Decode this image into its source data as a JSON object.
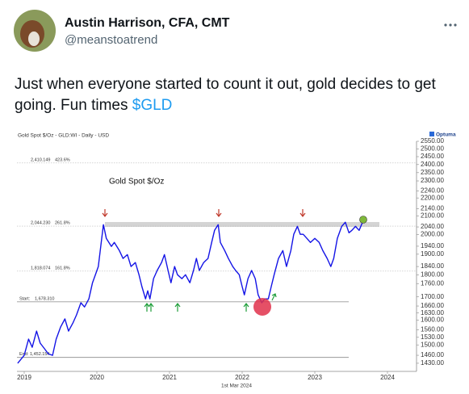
{
  "author": {
    "name": "Austin Harrison, CFA, CMT",
    "handle": "@meanstoatrend"
  },
  "tweet": {
    "text": "Just when everyone started to count it out, gold decides to get going. Fun times ",
    "cashtag": "$GLD"
  },
  "chart_data": {
    "type": "line",
    "header": "Gold Spot $/Oz - GLD:WI - Daily - USD",
    "brand": "Optuma",
    "title": "Gold Spot $/Oz",
    "date_label": "1st Mar 2024",
    "log_scale": true,
    "color": "#1414e6",
    "x": [
      2018.91,
      2019.0,
      2019.06,
      2019.11,
      2019.17,
      2019.22,
      2019.28,
      2019.33,
      2019.39,
      2019.44,
      2019.5,
      2019.56,
      2019.61,
      2019.67,
      2019.72,
      2019.78,
      2019.83,
      2019.89,
      2019.94,
      2019.98,
      2020.02,
      2020.06,
      2020.09,
      2020.13,
      2020.2,
      2020.24,
      2020.31,
      2020.36,
      2020.42,
      2020.47,
      2020.53,
      2020.58,
      2020.62,
      2020.67,
      2020.7,
      2020.73,
      2020.78,
      2020.83,
      2020.89,
      2020.93,
      2020.98,
      2021.02,
      2021.07,
      2021.11,
      2021.17,
      2021.22,
      2021.28,
      2021.33,
      2021.37,
      2021.41,
      2021.47,
      2021.53,
      2021.58,
      2021.62,
      2021.67,
      2021.7,
      2021.76,
      2021.81,
      2021.87,
      2021.91,
      2021.96,
      2022.0,
      2022.03,
      2022.08,
      2022.13,
      2022.18,
      2022.22,
      2022.27,
      2022.31,
      2022.36,
      2022.4,
      2022.44,
      2022.5,
      2022.56,
      2022.61,
      2022.67,
      2022.71,
      2022.76,
      2022.8,
      2022.84,
      2022.89,
      2022.94,
      2023.0,
      2023.06,
      2023.11,
      2023.17,
      2023.22,
      2023.26,
      2023.31,
      2023.37,
      2023.42,
      2023.47,
      2023.51,
      2023.56,
      2023.61,
      2023.67
    ],
    "values": [
      1430,
      1460,
      1523,
      1491,
      1555,
      1507,
      1485,
      1466,
      1460,
      1523,
      1571,
      1605,
      1555,
      1588,
      1622,
      1674,
      1656,
      1691,
      1764,
      1801,
      1840,
      1959,
      2052,
      1980,
      1939,
      1959,
      1918,
      1879,
      1898,
      1840,
      1859,
      1801,
      1746,
      1691,
      1727,
      1691,
      1783,
      1821,
      1859,
      1898,
      1821,
      1764,
      1840,
      1801,
      1783,
      1801,
      1764,
      1821,
      1879,
      1821,
      1859,
      1879,
      1959,
      2022,
      2052,
      1959,
      1918,
      1879,
      1840,
      1821,
      1801,
      1746,
      1709,
      1783,
      1821,
      1783,
      1709,
      1674,
      1691,
      1691,
      1746,
      1801,
      1879,
      1918,
      1840,
      1918,
      2001,
      2043,
      2001,
      2001,
      1980,
      1959,
      1980,
      1959,
      1918,
      1879,
      1840,
      1879,
      1980,
      2043,
      2065,
      2009,
      2022,
      2043,
      2022,
      2078
    ],
    "xlim": [
      2018.9,
      2024.4
    ],
    "xticks": [
      2019,
      2020,
      2021,
      2022,
      2023,
      2024
    ],
    "ylim": [
      1400,
      2550
    ],
    "yticks": [
      {
        "value": 2550,
        "label": "2550.00"
      },
      {
        "value": 2500,
        "label": "2500.00"
      },
      {
        "value": 2450,
        "label": "2450.00"
      },
      {
        "value": 2400,
        "label": "2400.00"
      },
      {
        "value": 2350,
        "label": "2350.00"
      },
      {
        "value": 2300,
        "label": "2300.00"
      },
      {
        "value": 2240,
        "label": "2240.00"
      },
      {
        "value": 2200,
        "label": "2200.00"
      },
      {
        "value": 2140,
        "label": "2140.00"
      },
      {
        "value": 2100,
        "label": "2100.00"
      },
      {
        "value": 2040,
        "label": "2040.00"
      },
      {
        "value": 2000,
        "label": "2000.00"
      },
      {
        "value": 1940,
        "label": "1940.00"
      },
      {
        "value": 1900,
        "label": "1900.00"
      },
      {
        "value": 1840,
        "label": "1840.00"
      },
      {
        "value": 1800,
        "label": "1800.00"
      },
      {
        "value": 1760,
        "label": "1760.00"
      },
      {
        "value": 1700,
        "label": "1700.00"
      },
      {
        "value": 1660,
        "label": "1660.00"
      },
      {
        "value": 1630,
        "label": "1630.00"
      },
      {
        "value": 1600,
        "label": "1600.00"
      },
      {
        "value": 1560,
        "label": "1560.00"
      },
      {
        "value": 1530,
        "label": "1530.00"
      },
      {
        "value": 1500,
        "label": "1500.00"
      },
      {
        "value": 1460,
        "label": "1460.00"
      },
      {
        "value": 1430,
        "label": "1430.00"
      }
    ],
    "levels": [
      {
        "value": 2410.149,
        "label": "2,410.149",
        "pct": "423.6%"
      },
      {
        "value": 2044.23,
        "label": "2,044.230",
        "pct": "261.8%"
      },
      {
        "value": 1818.074,
        "label": "1,818.074",
        "pct": "161.8%"
      },
      {
        "name": "Start:",
        "value": 1678.31,
        "label": "1,678.310"
      },
      {
        "name": "End:",
        "value": 1452.154,
        "label": "1,452.154"
      }
    ]
  }
}
